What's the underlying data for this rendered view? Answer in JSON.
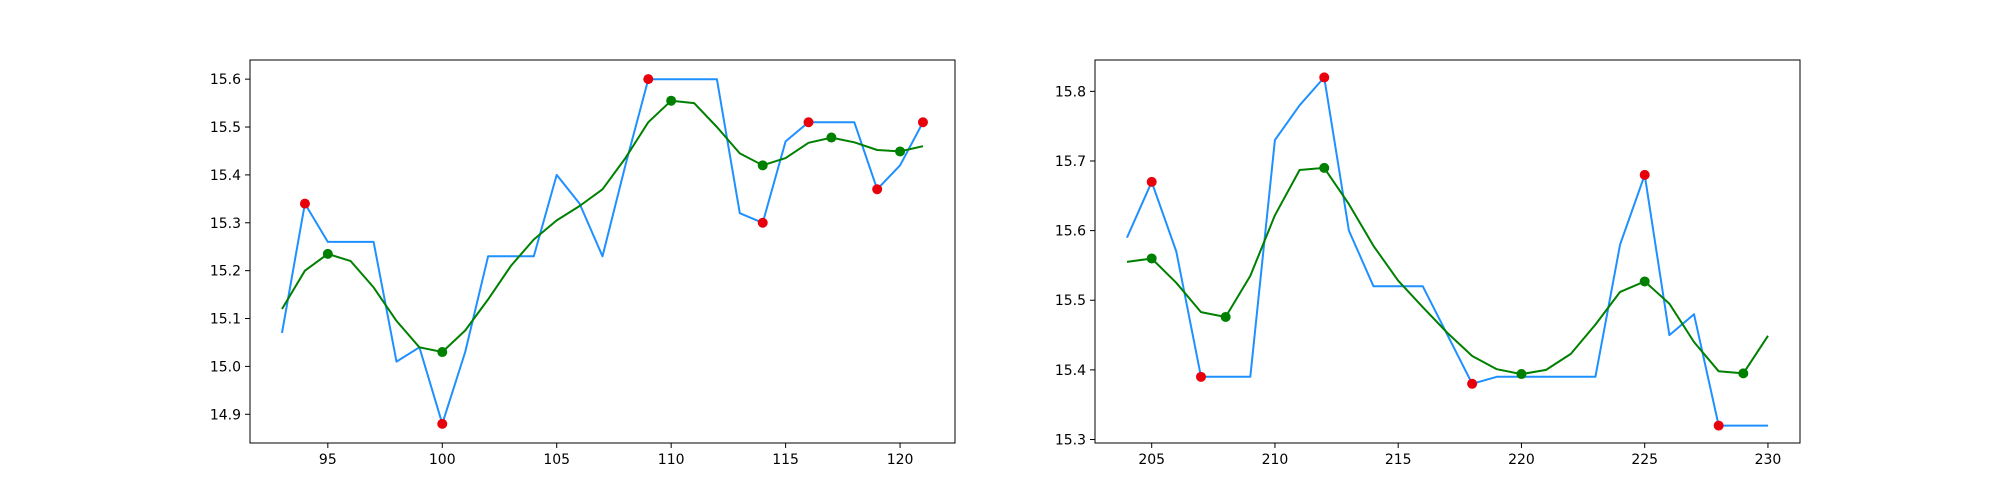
{
  "chart_data": [
    {
      "type": "line",
      "xlim": [
        91.6,
        122.4
      ],
      "ylim": [
        14.84,
        15.64
      ],
      "x_ticks": [
        95,
        100,
        105,
        110,
        115,
        120
      ],
      "y_ticks": [
        14.9,
        15.0,
        15.1,
        15.2,
        15.3,
        15.4,
        15.5,
        15.6
      ],
      "x_tick_labels": [
        "95",
        "100",
        "105",
        "110",
        "115",
        "120"
      ],
      "y_tick_labels": [
        "14.9",
        "15.0",
        "15.1",
        "15.2",
        "15.3",
        "15.4",
        "15.5",
        "15.6"
      ],
      "colors": {
        "raw": "#1e90ff",
        "smooth": "#008000",
        "red_points": "#e8000b",
        "green_points": "#008000"
      },
      "series": [
        {
          "style": "raw",
          "x": [
            93,
            94,
            95,
            96,
            97,
            98,
            99,
            100,
            101,
            102,
            103,
            104,
            105,
            106,
            107,
            108,
            109,
            110,
            111,
            112,
            113,
            114,
            115,
            116,
            117,
            118,
            119,
            120,
            121
          ],
          "y": [
            15.07,
            15.34,
            15.26,
            15.26,
            15.26,
            15.01,
            15.04,
            14.88,
            15.03,
            15.23,
            15.23,
            15.23,
            15.4,
            15.34,
            15.23,
            15.42,
            15.6,
            15.6,
            15.6,
            15.6,
            15.32,
            15.3,
            15.47,
            15.51,
            15.51,
            15.51,
            15.37,
            15.42,
            15.51
          ]
        },
        {
          "style": "smooth",
          "x": [
            93,
            94,
            95,
            96,
            97,
            98,
            99,
            100,
            101,
            102,
            103,
            104,
            105,
            106,
            107,
            108,
            109,
            110,
            111,
            112,
            113,
            114,
            115,
            116,
            117,
            118,
            119,
            120,
            121
          ],
          "y": [
            15.12,
            15.2,
            15.235,
            15.22,
            15.165,
            15.095,
            15.04,
            15.03,
            15.075,
            15.14,
            15.21,
            15.265,
            15.305,
            15.335,
            15.37,
            15.435,
            15.51,
            15.555,
            15.55,
            15.5,
            15.445,
            15.42,
            15.435,
            15.467,
            15.478,
            15.468,
            15.452,
            15.449,
            15.46
          ]
        }
      ],
      "red_points": {
        "x": [
          94,
          100,
          109,
          114,
          116,
          119,
          121
        ],
        "y": [
          15.34,
          14.88,
          15.6,
          15.3,
          15.51,
          15.37,
          15.51
        ]
      },
      "green_points": {
        "x": [
          95,
          100,
          110,
          114,
          117,
          120
        ],
        "y": [
          15.235,
          15.03,
          15.555,
          15.42,
          15.478,
          15.449
        ]
      }
    },
    {
      "type": "line",
      "xlim": [
        202.7,
        231.3
      ],
      "ylim": [
        15.295,
        15.845
      ],
      "x_ticks": [
        205,
        210,
        215,
        220,
        225,
        230
      ],
      "y_ticks": [
        15.3,
        15.4,
        15.5,
        15.6,
        15.7,
        15.8
      ],
      "x_tick_labels": [
        "205",
        "210",
        "215",
        "220",
        "225",
        "230"
      ],
      "y_tick_labels": [
        "15.3",
        "15.4",
        "15.5",
        "15.6",
        "15.7",
        "15.8"
      ],
      "colors": {
        "raw": "#1e90ff",
        "smooth": "#008000",
        "red_points": "#e8000b",
        "green_points": "#008000"
      },
      "series": [
        {
          "style": "raw",
          "x": [
            204,
            205,
            206,
            207,
            208,
            209,
            210,
            211,
            212,
            213,
            214,
            215,
            216,
            217,
            218,
            219,
            220,
            221,
            222,
            223,
            224,
            225,
            226,
            227,
            228,
            229,
            230
          ],
          "y": [
            15.59,
            15.67,
            15.57,
            15.39,
            15.39,
            15.39,
            15.73,
            15.78,
            15.82,
            15.6,
            15.52,
            15.52,
            15.52,
            15.45,
            15.38,
            15.39,
            15.39,
            15.39,
            15.39,
            15.39,
            15.58,
            15.68,
            15.45,
            15.48,
            15.32,
            15.32,
            15.32
          ]
        },
        {
          "style": "smooth",
          "x": [
            204,
            205,
            206,
            207,
            208,
            209,
            210,
            211,
            212,
            213,
            214,
            215,
            216,
            217,
            218,
            219,
            220,
            221,
            222,
            223,
            224,
            225,
            226,
            227,
            228,
            229,
            230
          ],
          "y": [
            15.555,
            15.56,
            15.525,
            15.483,
            15.476,
            15.535,
            15.622,
            15.687,
            15.69,
            15.638,
            15.578,
            15.528,
            15.49,
            15.453,
            15.42,
            15.401,
            15.394,
            15.4,
            15.423,
            15.465,
            15.512,
            15.527,
            15.495,
            15.44,
            15.398,
            15.395,
            15.449
          ]
        }
      ],
      "red_points": {
        "x": [
          205,
          207,
          212,
          218,
          225,
          228
        ],
        "y": [
          15.67,
          15.39,
          15.82,
          15.38,
          15.68,
          15.32
        ]
      },
      "green_points": {
        "x": [
          205,
          208,
          212,
          220,
          225,
          229
        ],
        "y": [
          15.56,
          15.476,
          15.69,
          15.394,
          15.527,
          15.395
        ]
      }
    }
  ]
}
